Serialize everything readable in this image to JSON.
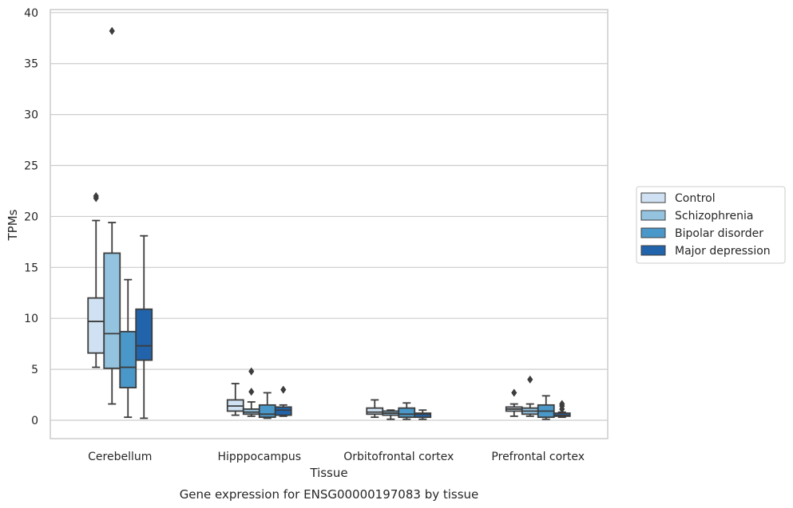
{
  "chart_data": {
    "type": "boxplot",
    "title": "Gene expression for ENSG00000197083 by tissue",
    "xlabel": "Tissue",
    "ylabel": "TPMs",
    "ylim": [
      -1.8,
      40.3
    ],
    "yticks": [
      0,
      5,
      10,
      15,
      20,
      25,
      30,
      35,
      40
    ],
    "grid": true,
    "legend_position": "right",
    "categories": [
      "Cerebellum",
      "Hipppocampus",
      "Orbitofrontal cortex",
      "Prefrontal cortex"
    ],
    "series": [
      {
        "name": "Control",
        "color": "#cfe1f2",
        "boxes": [
          {
            "whislo": 5.2,
            "q1": 6.6,
            "med": 9.7,
            "q3": 12.0,
            "whishi": 19.6,
            "fliers": [
              21.8,
              22.0
            ]
          },
          {
            "whislo": 0.5,
            "q1": 0.9,
            "med": 1.4,
            "q3": 2.0,
            "whishi": 3.6,
            "fliers": []
          },
          {
            "whislo": 0.3,
            "q1": 0.6,
            "med": 0.8,
            "q3": 1.2,
            "whishi": 2.0,
            "fliers": []
          },
          {
            "whislo": 0.4,
            "q1": 0.9,
            "med": 1.1,
            "q3": 1.3,
            "whishi": 1.6,
            "fliers": [
              2.7
            ]
          }
        ]
      },
      {
        "name": "Schizophrenia",
        "color": "#93c3df",
        "boxes": [
          {
            "whislo": 1.6,
            "q1": 5.1,
            "med": 8.5,
            "q3": 16.4,
            "whishi": 19.4,
            "fliers": [
              38.2
            ]
          },
          {
            "whislo": 0.4,
            "q1": 0.6,
            "med": 0.8,
            "q3": 1.1,
            "whishi": 1.8,
            "fliers": [
              2.8,
              4.8
            ]
          },
          {
            "whislo": 0.1,
            "q1": 0.5,
            "med": 0.7,
            "q3": 0.9,
            "whishi": 1.0,
            "fliers": []
          },
          {
            "whislo": 0.4,
            "q1": 0.6,
            "med": 0.9,
            "q3": 1.2,
            "whishi": 1.6,
            "fliers": [
              4.0
            ]
          }
        ]
      },
      {
        "name": "Bipolar disorder",
        "color": "#4a98c9",
        "boxes": [
          {
            "whislo": 0.3,
            "q1": 3.2,
            "med": 5.2,
            "q3": 8.7,
            "whishi": 13.8,
            "fliers": []
          },
          {
            "whislo": 0.2,
            "q1": 0.3,
            "med": 0.6,
            "q3": 1.5,
            "whishi": 2.7,
            "fliers": []
          },
          {
            "whislo": 0.1,
            "q1": 0.3,
            "med": 0.6,
            "q3": 1.2,
            "whishi": 1.7,
            "fliers": []
          },
          {
            "whislo": 0.1,
            "q1": 0.3,
            "med": 0.9,
            "q3": 1.5,
            "whishi": 2.4,
            "fliers": []
          }
        ]
      },
      {
        "name": "Major depression",
        "color": "#2164ab",
        "boxes": [
          {
            "whislo": 0.2,
            "q1": 5.9,
            "med": 7.3,
            "q3": 10.9,
            "whishi": 18.1,
            "fliers": []
          },
          {
            "whislo": 0.4,
            "q1": 0.5,
            "med": 1.0,
            "q3": 1.3,
            "whishi": 1.5,
            "fliers": [
              3.0
            ]
          },
          {
            "whislo": 0.1,
            "q1": 0.3,
            "med": 0.6,
            "q3": 0.7,
            "whishi": 1.0,
            "fliers": []
          },
          {
            "whislo": 0.3,
            "q1": 0.4,
            "med": 0.5,
            "q3": 0.7,
            "whishi": 0.8,
            "fliers": [
              1.1,
              1.4,
              1.6
            ]
          }
        ]
      }
    ]
  }
}
